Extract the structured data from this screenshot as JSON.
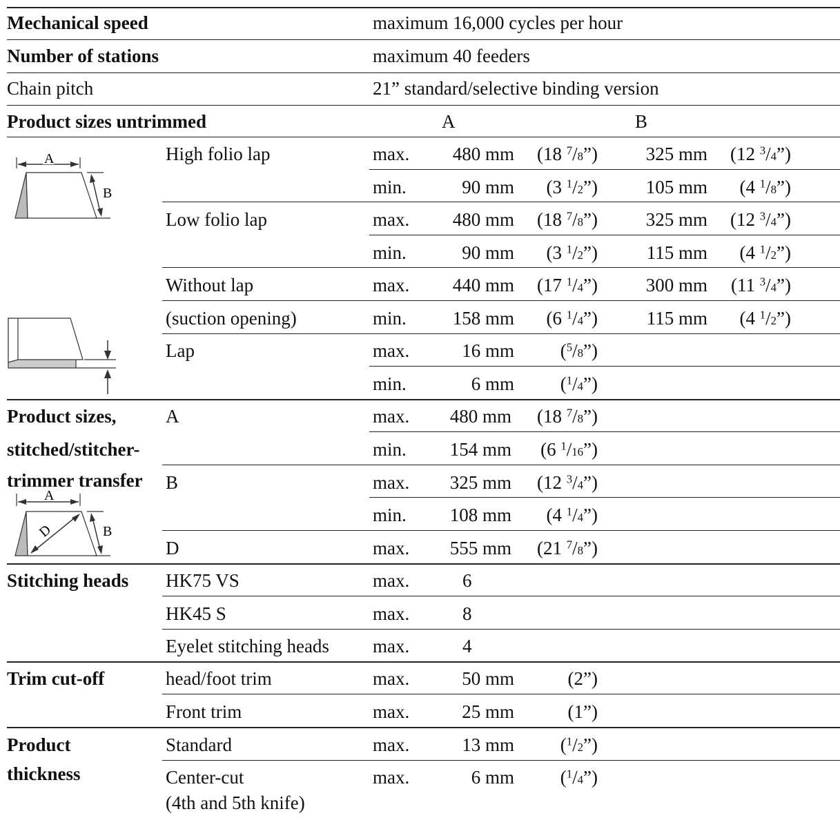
{
  "rows": {
    "speed": {
      "label": "Mechanical speed",
      "value": "maximum  16,000 cycles per hour"
    },
    "stations": {
      "label": "Number of stations",
      "value": "maximum 40 feeders"
    },
    "pitch": {
      "label": "Chain pitch",
      "value": "21” standard/selective binding version"
    }
  },
  "sizes": {
    "heading": "Product sizes untrimmed",
    "col_a": "A",
    "col_b": "B",
    "high_folio": "High folio lap",
    "low_folio": "Low folio lap",
    "without_lap": "Without lap",
    "suction": "(suction opening)",
    "lap": "Lap",
    "max": "max.",
    "min": "min.",
    "v_480": "480 mm",
    "v_90": "90 mm",
    "v_440": "440 mm",
    "v_158": "158 mm",
    "v_16": "16 mm",
    "v_6": "6 mm",
    "v_325": "325 mm",
    "v_105": "105 mm",
    "v_115": "115 mm",
    "v_300": "300 mm",
    "in_18_7_8": "18",
    "in_3_1_2": "3",
    "in_17_1_4": "17",
    "in_6_1_4": "6",
    "in_12_3_4": "12",
    "in_4_1_8": "4",
    "in_4_1_2": "4",
    "in_11_3_4": "11"
  },
  "stitched": {
    "heading_1": "Product sizes,",
    "heading_2": "stitched/stitcher-",
    "heading_3": "trimmer transfer",
    "a": "A",
    "b": "B",
    "d": "D",
    "v_480": "480 mm",
    "v_154": "154 mm",
    "v_325": "325 mm",
    "v_108": "108 mm",
    "v_555": "555 mm"
  },
  "stitching": {
    "heading": "Stitching heads",
    "hk75": "HK75 VS",
    "hk45": "HK45 S",
    "eyelet": "Eyelet stitching heads",
    "n_6": "6",
    "n_8": "8",
    "n_4": "4"
  },
  "trim": {
    "heading": "Trim cut-off",
    "head_foot": "head/foot trim",
    "front": "Front trim",
    "v_50": "50 mm",
    "v_25": "25 mm",
    "in_2": "(2”)",
    "in_1": "(1”)"
  },
  "thickness": {
    "heading_1": "Product",
    "heading_2": "thickness",
    "standard": "Standard",
    "center_cut": "Center-cut",
    "knife": "(4th and 5th knife)",
    "v_13": "13 mm",
    "v_6": "6 mm"
  },
  "diagram_labels": {
    "a": "A",
    "b": "B",
    "d": "D"
  }
}
